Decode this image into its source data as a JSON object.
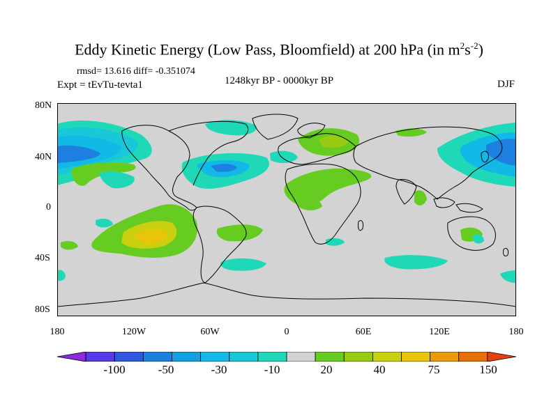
{
  "title": {
    "main": "Eddy Kinetic Energy (Low Pass, Bloomfield) at 200 hPa (in m",
    "sup1": "2",
    "mid": "s",
    "sup2": "-2",
    "end": ")"
  },
  "stats": "rmsd= 13.616 diff= -0.351074",
  "expt": "Expt = tEvTu-tevta1",
  "period": "1248kyr BP - 0000kyr BP",
  "season": "DJF",
  "y_ticks": [
    "80N",
    "40N",
    "0",
    "40S",
    "80S"
  ],
  "x_ticks": [
    "180",
    "120W",
    "60W",
    "0",
    "60E",
    "120E",
    "180"
  ],
  "colorbar": {
    "colors": [
      "#8a2be2",
      "#5a3ae6",
      "#2f57e0",
      "#1d7fe0",
      "#12a0e0",
      "#12b8e6",
      "#18c8d8",
      "#1ed8b8",
      "#d3d3d3",
      "#66cc22",
      "#99cc11",
      "#c8d010",
      "#e8c40a",
      "#e89a0a",
      "#e8700a",
      "#e64010"
    ],
    "labels": [
      "-100",
      "-50",
      "-30",
      "-10",
      "20",
      "40",
      "75",
      "150"
    ]
  },
  "colors": {
    "land_background": "#d3d3d3",
    "coast": "#000000"
  }
}
